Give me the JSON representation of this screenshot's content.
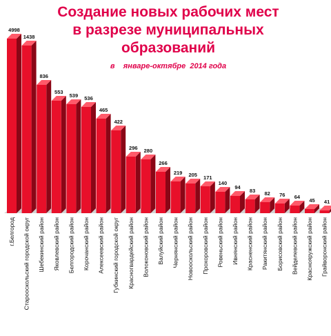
{
  "chart_data": {
    "type": "bar",
    "title": "Создание новых рабочих мест в разрезе муниципальных образований",
    "title_lines": [
      "Создание новых рабочих мест",
      "в разрезе муниципальных",
      "образований"
    ],
    "subtitle": "в    январе-октябре  2014 года",
    "categories": [
      "г.Белгород",
      "Старооскольский городской округ",
      "Шебекинский район",
      "Яковлевский район",
      "Белгородский район",
      "Корочанский район",
      "Алексеевский район",
      "Губкинский городской округ",
      "Красногвардейский район",
      "Волоконовский район",
      "Валуйский район",
      "Чернянский район",
      "Новооскольский район",
      "Прохоровский район",
      "Ровеньский район",
      "Ивнянский район",
      "Красненский район",
      "Ракитянский район",
      "Борисовский район",
      "Вейделевский район",
      "Краснояружский район",
      "Грайворонский район"
    ],
    "values": [
      4998,
      1438,
      836,
      553,
      539,
      536,
      465,
      422,
      296,
      280,
      266,
      219,
      205,
      171,
      140,
      94,
      83,
      82,
      76,
      64,
      45,
      41
    ],
    "value_labels": [
      "4998",
      "1438",
      "836",
      "553",
      "539",
      "536",
      "465",
      "422",
      "296",
      "280",
      "266",
      "219",
      "205",
      "171",
      "140",
      "94",
      "83",
      "82",
      "76",
      "64",
      "45",
      "41"
    ],
    "bar_heights_visual": [
      253,
      243,
      186,
      163,
      158,
      154,
      137,
      120,
      82,
      78,
      60,
      46,
      43,
      39,
      31,
      25,
      20,
      16,
      14,
      11,
      6,
      4
    ],
    "colors": {
      "title": "#e0004a",
      "bar_front": "#e8102a",
      "bar_side": "#8a0616",
      "bar_top": "#ff5a6a",
      "floor": "#cccccc"
    }
  }
}
